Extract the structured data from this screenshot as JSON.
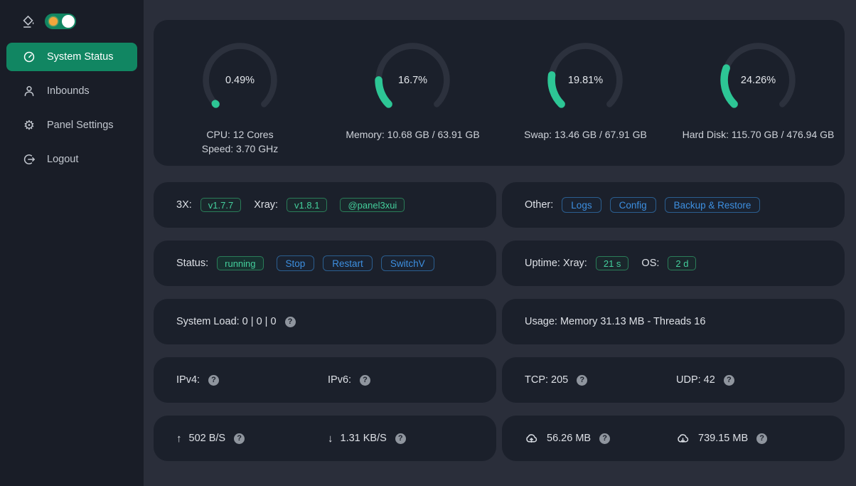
{
  "sidebar": {
    "menu": [
      {
        "label": "System Status"
      },
      {
        "label": "Inbounds"
      },
      {
        "label": "Panel Settings"
      },
      {
        "label": "Logout"
      }
    ]
  },
  "gauges": [
    {
      "percent": 0.49,
      "display": "0.49%",
      "label": "CPU: 12 Cores",
      "label2": "Speed: 3.70 GHz"
    },
    {
      "percent": 16.7,
      "display": "16.7%",
      "label": "Memory: 10.68 GB / 63.91 GB",
      "label2": ""
    },
    {
      "percent": 19.81,
      "display": "19.81%",
      "label": "Swap: 13.46 GB / 67.91 GB",
      "label2": ""
    },
    {
      "percent": 24.26,
      "display": "24.26%",
      "label": "Hard Disk: 115.70 GB / 476.94 GB",
      "label2": ""
    }
  ],
  "versions": {
    "label": "3X:",
    "tag": "v1.7.7",
    "xray_label": "Xray:",
    "xray_tag": "v1.8.1",
    "channel_tag": "@panel3xui"
  },
  "other": {
    "label": "Other:",
    "logs": "Logs",
    "config": "Config",
    "backup": "Backup & Restore"
  },
  "status": {
    "label": "Status:",
    "state": "running",
    "stop": "Stop",
    "restart": "Restart",
    "switch": "SwitchV"
  },
  "uptime": {
    "prefix": "Uptime: Xray:",
    "xray_value": "21 s",
    "os_label": "OS:",
    "os_value": "2 d"
  },
  "system_load": {
    "text": "System Load: 0 | 0 | 0"
  },
  "usage": {
    "text": "Usage: Memory 31.13 MB - Threads 16"
  },
  "ip": {
    "ipv4_label": "IPv4:",
    "ipv6_label": "IPv6:"
  },
  "connections": {
    "tcp": "TCP: 205",
    "udp": "UDP: 42"
  },
  "speed": {
    "up_arrow": "↑",
    "up": "502 B/S",
    "down_arrow": "↓",
    "down": "1.31 KB/S"
  },
  "traffic": {
    "sent": "56.26 MB",
    "received": "739.15 MB"
  },
  "colors": {
    "accent_green": "#118662",
    "gauge_green": "#2dc695",
    "tag_green": "#44cf9c",
    "button_blue": "#3d8fe0",
    "card_bg": "#1b202b",
    "page_bg": "#2a2e3a",
    "sidebar_bg": "#191d27"
  }
}
